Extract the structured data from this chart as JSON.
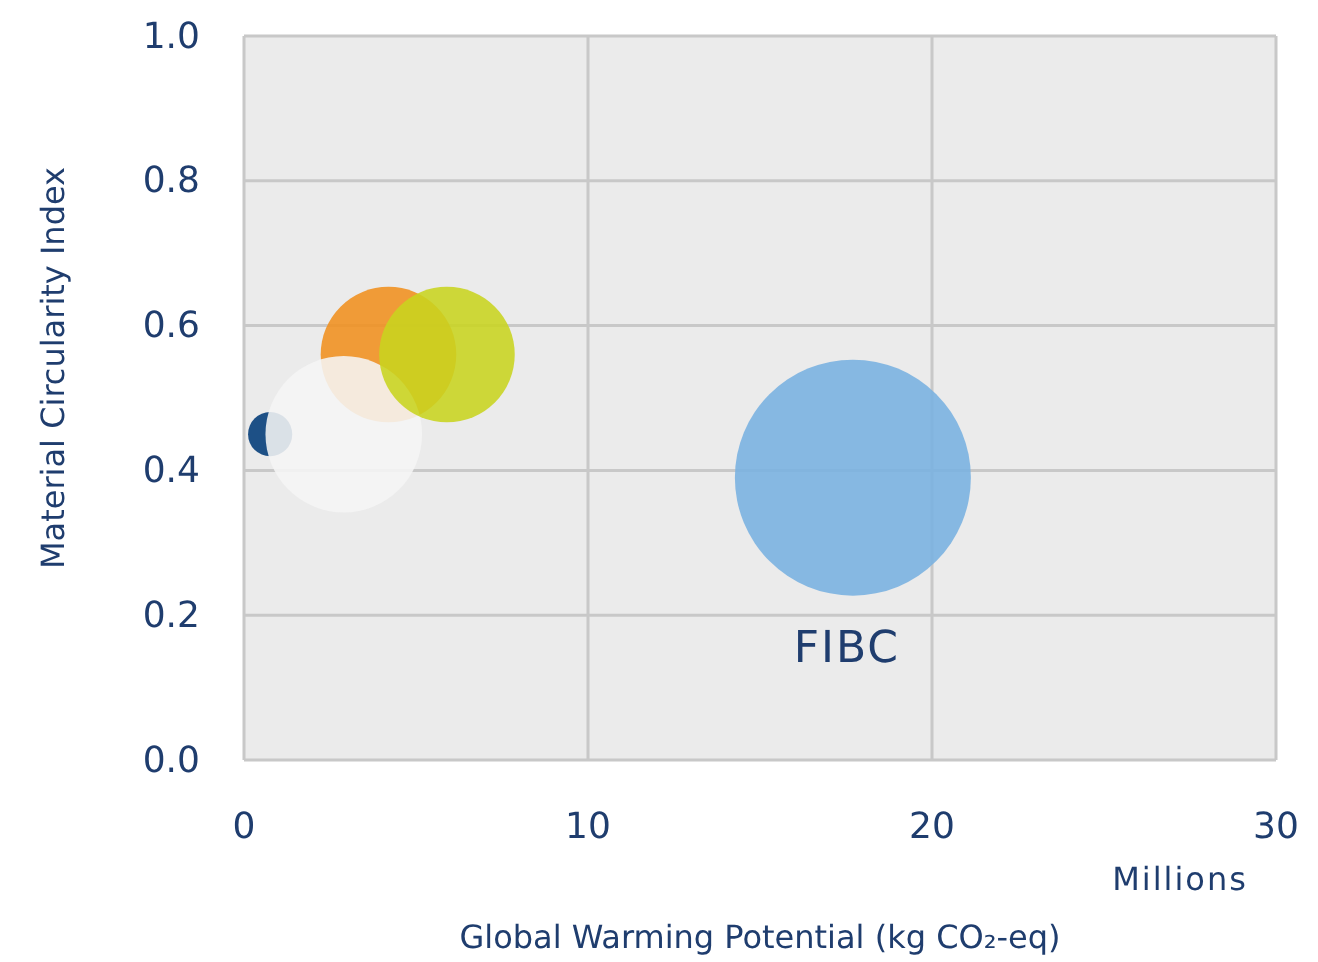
{
  "chart_data": {
    "type": "bubble",
    "xlabel": "Global Warming Potential (kg CO₂-eq)",
    "ylabel": "Material Circularity Index",
    "xlim": [
      0,
      30
    ],
    "xticks": [
      0,
      10,
      20,
      30
    ],
    "ylim": [
      0,
      1
    ],
    "yticks": [
      {
        "value": 0,
        "label": "0.0"
      },
      {
        "value": 0.2,
        "label": "0.2"
      },
      {
        "value": 0.4,
        "label": "0.4"
      },
      {
        "value": 0.6,
        "label": "0.6"
      },
      {
        "value": 0.8,
        "label": "0.8"
      },
      {
        "value": 1,
        "label": "1.0"
      }
    ],
    "grid": true,
    "annotations": [
      "Millions"
    ],
    "series": [
      {
        "color": "#003a78",
        "x": [
          0.76
        ],
        "values": [
          0.45
        ],
        "sizes": [
          0.035
        ]
      },
      {
        "color": "#f0901e",
        "x": [
          4.2
        ],
        "values": [
          0.56
        ],
        "sizes": [
          0.33
        ]
      },
      {
        "color": "#f5f5f5",
        "x": [
          2.9
        ],
        "values": [
          0.45
        ],
        "sizes": [
          0.44
        ]
      },
      {
        "color": "#c8d41f",
        "x": [
          5.9
        ],
        "values": [
          0.56
        ],
        "sizes": [
          0.33
        ]
      },
      {
        "name": "FIBC",
        "color": "#77b0e0",
        "x": [
          17.7
        ],
        "values": [
          0.39
        ],
        "sizes": [
          1
        ]
      }
    ]
  }
}
